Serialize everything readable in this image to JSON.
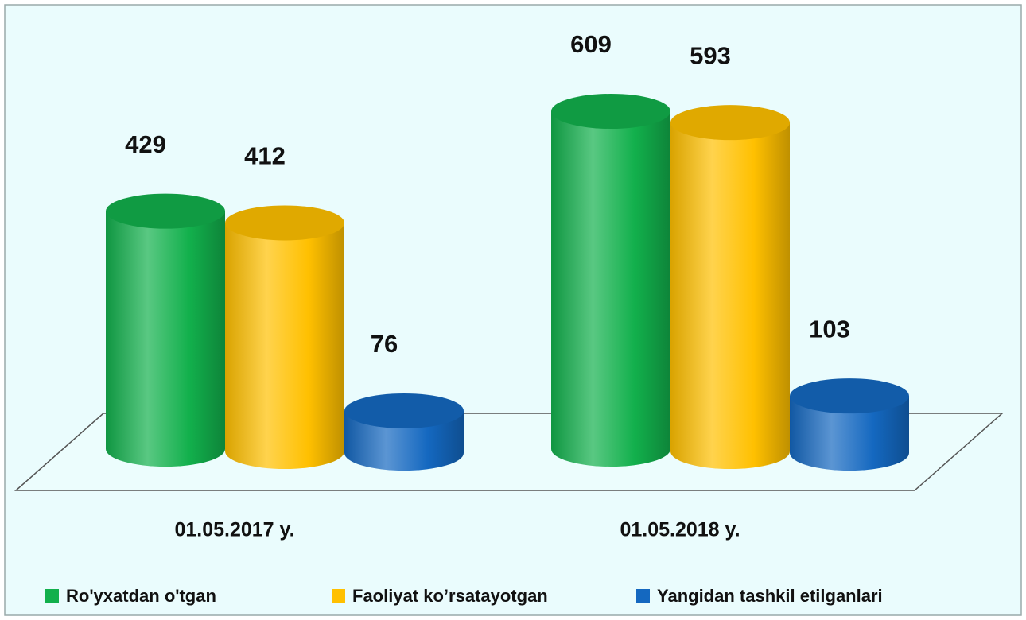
{
  "chart_data": {
    "type": "bar",
    "categories": [
      "01.05.2017 y.",
      "01.05.2018 y."
    ],
    "series": [
      {
        "name": "Ro'yxatdan o'tgan",
        "color": "#12b04c",
        "values": [
          429,
          609
        ]
      },
      {
        "name": "Faoliyat ko’rsatayotgan",
        "color": "#ffc000",
        "values": [
          412,
          593
        ]
      },
      {
        "name": "Yangidan tashkil etilganlari",
        "color": "#1468c0",
        "values": [
          76,
          103
        ]
      }
    ]
  }
}
